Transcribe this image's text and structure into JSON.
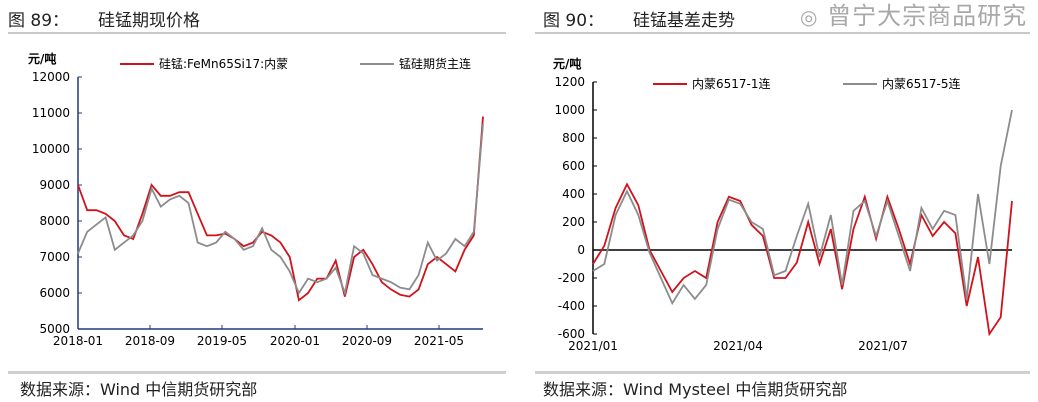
{
  "figures": [
    {
      "label": "图 89：",
      "title": "硅锰期现价格",
      "source": "数据来源：Wind  中信期货研究部"
    },
    {
      "label": "图 90：",
      "title": "硅锰基差走势",
      "source": "数据来源：Wind Mysteel  中信期货研究部"
    }
  ],
  "watermark": "曾宁大宗商品研究",
  "watermark_icon": "wechat-icon",
  "chart_data": [
    {
      "type": "line",
      "ylabel": "元/吨",
      "ylim": [
        5000,
        12000
      ],
      "yticks": [
        5000,
        6000,
        7000,
        8000,
        9000,
        10000,
        11000,
        12000
      ],
      "xticks": [
        "2018-01",
        "2018-09",
        "2019-05",
        "2020-01",
        "2020-09",
        "2021-05"
      ],
      "legend": "top",
      "x_start": "2018-01",
      "x_end": "2021-09",
      "series": [
        {
          "name": "硅锰:FeMn65Si17:内蒙",
          "color": "#d0121b",
          "values": [
            9000,
            8300,
            8300,
            8200,
            8000,
            7600,
            7500,
            8200,
            9000,
            8700,
            8700,
            8800,
            8800,
            8200,
            7600,
            7600,
            7650,
            7500,
            7300,
            7400,
            7700,
            7600,
            7400,
            7000,
            5800,
            6000,
            6400,
            6400,
            6900,
            5900,
            7000,
            7200,
            6800,
            6300,
            6100,
            5950,
            5900,
            6100,
            6800,
            7000,
            6800,
            6600,
            7200,
            7600,
            10900
          ]
        },
        {
          "name": "锰硅期货主连",
          "color": "#8c8c8c",
          "values": [
            7100,
            7700,
            7900,
            8100,
            7200,
            7400,
            7600,
            8000,
            8900,
            8400,
            8600,
            8700,
            8500,
            7400,
            7300,
            7400,
            7700,
            7500,
            7200,
            7300,
            7800,
            7200,
            7000,
            6600,
            6000,
            6400,
            6300,
            6400,
            6700,
            6000,
            7300,
            7100,
            6500,
            6400,
            6300,
            6150,
            6100,
            6500,
            7400,
            6900,
            7100,
            7500,
            7300,
            7700,
            10700
          ]
        }
      ]
    },
    {
      "type": "line",
      "ylabel": "元/吨",
      "ylim": [
        -600,
        1200
      ],
      "yticks": [
        -600,
        -400,
        -200,
        0,
        200,
        400,
        600,
        800,
        1000,
        1200
      ],
      "xticks": [
        "2021/01",
        "2021/04",
        "2021/07"
      ],
      "legend": "top",
      "x_start": "2021-01",
      "x_end": "2021-09",
      "series": [
        {
          "name": "内蒙6517-1连",
          "color": "#d0121b",
          "values": [
            -100,
            30,
            300,
            470,
            320,
            0,
            -150,
            -300,
            -200,
            -150,
            -200,
            200,
            380,
            350,
            180,
            100,
            -200,
            -200,
            -90,
            200,
            -100,
            150,
            -280,
            150,
            380,
            80,
            380,
            150,
            -100,
            250,
            100,
            200,
            120,
            -400,
            -50,
            -600,
            -480,
            350
          ]
        },
        {
          "name": "内蒙6517-5连",
          "color": "#8c8c8c",
          "values": [
            -150,
            -100,
            250,
            420,
            250,
            -20,
            -200,
            -380,
            -250,
            -350,
            -250,
            150,
            360,
            330,
            200,
            150,
            -180,
            -150,
            100,
            330,
            -50,
            250,
            -250,
            280,
            350,
            100,
            350,
            100,
            -150,
            300,
            150,
            280,
            250,
            -350,
            400,
            -100,
            600,
            1000
          ]
        }
      ]
    }
  ]
}
